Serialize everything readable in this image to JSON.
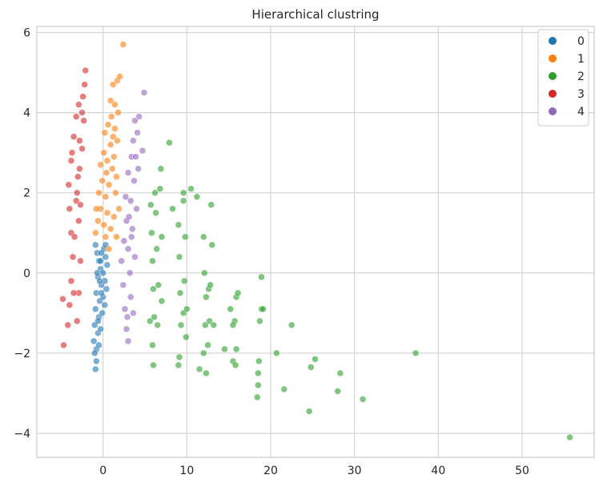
{
  "chart_data": {
    "type": "scatter",
    "title": "Hierarchical clustring",
    "xlabel": "",
    "ylabel": "",
    "xlim": [
      -7.9,
      58.6
    ],
    "ylim": [
      -4.6,
      6.15
    ],
    "x_ticks": [
      0,
      10,
      20,
      30,
      40,
      50
    ],
    "y_ticks": [
      -4,
      -2,
      0,
      2,
      4,
      6
    ],
    "x_tick_labels": [
      "0",
      "10",
      "20",
      "30",
      "40",
      "50"
    ],
    "y_tick_labels": [
      "−4",
      "−2",
      "0",
      "2",
      "4",
      "6"
    ],
    "grid": true,
    "legend_position": "top-right",
    "series": [
      {
        "name": "0",
        "color": "#1f77b4",
        "points": [
          [
            -0.9,
            0.7
          ],
          [
            -0.7,
            0.5
          ],
          [
            -0.5,
            0.3
          ],
          [
            -0.3,
            0.1
          ],
          [
            0.1,
            0.6
          ],
          [
            0.3,
            0.4
          ],
          [
            0.5,
            0.2
          ],
          [
            -0.6,
            -0.1
          ],
          [
            -0.2,
            -0.3
          ],
          [
            0.2,
            -0.2
          ],
          [
            -0.8,
            -0.5
          ],
          [
            -0.4,
            -0.7
          ],
          [
            0.0,
            -0.6
          ],
          [
            0.4,
            -0.4
          ],
          [
            -0.9,
            -0.9
          ],
          [
            -0.5,
            -1.1
          ],
          [
            -0.1,
            -1.0
          ],
          [
            0.2,
            -0.8
          ],
          [
            -1.0,
            -1.3
          ],
          [
            -0.6,
            -1.5
          ],
          [
            -0.3,
            -1.4
          ],
          [
            -1.1,
            -1.7
          ],
          [
            -0.8,
            -1.9
          ],
          [
            -0.5,
            -1.8
          ],
          [
            -1.0,
            -2.0
          ],
          [
            -0.8,
            -2.2
          ],
          [
            -0.9,
            -2.4
          ],
          [
            -0.7,
            0.0
          ],
          [
            -0.3,
            0.3
          ],
          [
            0.0,
            0.0
          ],
          [
            -0.4,
            -0.2
          ],
          [
            0.3,
            0.7
          ],
          [
            -0.2,
            0.5
          ],
          [
            -0.6,
            -1.2
          ],
          [
            -0.2,
            -0.5
          ]
        ]
      },
      {
        "name": "1",
        "color": "#ff7f0e",
        "points": [
          [
            -0.9,
            1.0
          ],
          [
            -0.6,
            1.3
          ],
          [
            -0.3,
            1.6
          ],
          [
            0.1,
            1.2
          ],
          [
            0.5,
            1.5
          ],
          [
            0.9,
            1.1
          ],
          [
            1.3,
            1.4
          ],
          [
            1.6,
            0.9
          ],
          [
            0.7,
            0.6
          ],
          [
            -0.5,
            2.0
          ],
          [
            -0.1,
            2.3
          ],
          [
            0.3,
            1.9
          ],
          [
            0.7,
            2.2
          ],
          [
            1.1,
            2.6
          ],
          [
            1.5,
            2.0
          ],
          [
            -0.3,
            2.7
          ],
          [
            0.1,
            3.0
          ],
          [
            0.5,
            2.8
          ],
          [
            0.9,
            3.2
          ],
          [
            1.3,
            2.9
          ],
          [
            1.7,
            3.3
          ],
          [
            0.2,
            3.5
          ],
          [
            0.6,
            3.7
          ],
          [
            1.0,
            3.9
          ],
          [
            1.4,
            3.6
          ],
          [
            1.8,
            4.0
          ],
          [
            0.9,
            4.3
          ],
          [
            1.4,
            4.2
          ],
          [
            1.7,
            4.8
          ],
          [
            1.2,
            4.7
          ],
          [
            2.0,
            4.9
          ],
          [
            2.4,
            5.7
          ],
          [
            0.3,
            0.9
          ],
          [
            1.9,
            1.6
          ],
          [
            -0.8,
            1.6
          ],
          [
            1.6,
            2.4
          ],
          [
            0.4,
            2.5
          ],
          [
            1.2,
            3.4
          ]
        ]
      },
      {
        "name": "2",
        "color": "#2ca02c",
        "points": [
          [
            5.7,
            1.7
          ],
          [
            5.8,
            1.0
          ],
          [
            5.9,
            0.3
          ],
          [
            6.0,
            -0.4
          ],
          [
            6.1,
            -1.1
          ],
          [
            5.9,
            -1.8
          ],
          [
            6.0,
            -2.3
          ],
          [
            6.3,
            1.5
          ],
          [
            6.4,
            0.6
          ],
          [
            6.6,
            -0.3
          ],
          [
            6.5,
            -1.3
          ],
          [
            6.8,
            2.1
          ],
          [
            6.9,
            2.6
          ],
          [
            7.0,
            0.9
          ],
          [
            7.0,
            -0.7
          ],
          [
            5.6,
            -1.2
          ],
          [
            6.2,
            2.0
          ],
          [
            7.9,
            3.25
          ],
          [
            8.3,
            1.6
          ],
          [
            9.0,
            1.2
          ],
          [
            9.1,
            0.4
          ],
          [
            9.2,
            -0.5
          ],
          [
            9.3,
            -1.3
          ],
          [
            9.1,
            -2.1
          ],
          [
            9.0,
            -2.3
          ],
          [
            9.6,
            1.8
          ],
          [
            9.8,
            0.9
          ],
          [
            9.7,
            -0.2
          ],
          [
            9.6,
            -1.0
          ],
          [
            9.9,
            -1.6
          ],
          [
            9.6,
            2.0
          ],
          [
            10.5,
            2.1
          ],
          [
            11.2,
            1.9
          ],
          [
            10.0,
            -0.9
          ],
          [
            12.0,
            0.9
          ],
          [
            12.1,
            0.0
          ],
          [
            12.3,
            -0.6
          ],
          [
            12.2,
            -1.3
          ],
          [
            12.0,
            -2.0
          ],
          [
            12.3,
            -2.5
          ],
          [
            12.6,
            -0.4
          ],
          [
            12.7,
            -1.2
          ],
          [
            12.5,
            -1.8
          ],
          [
            12.9,
            1.7
          ],
          [
            13.0,
            0.7
          ],
          [
            12.8,
            -0.3
          ],
          [
            11.5,
            -2.4
          ],
          [
            13.2,
            -1.3
          ],
          [
            14.5,
            -1.9
          ],
          [
            15.2,
            -0.9
          ],
          [
            15.7,
            -1.2
          ],
          [
            15.9,
            -0.6
          ],
          [
            16.1,
            -0.5
          ],
          [
            15.5,
            -1.3
          ],
          [
            15.5,
            -2.2
          ],
          [
            15.8,
            -2.3
          ],
          [
            15.9,
            -1.9
          ],
          [
            18.4,
            -3.1
          ],
          [
            18.5,
            -2.8
          ],
          [
            18.5,
            -2.5
          ],
          [
            18.6,
            -2.2
          ],
          [
            18.7,
            -1.2
          ],
          [
            18.9,
            -0.9
          ],
          [
            19.1,
            -0.9
          ],
          [
            18.9,
            -0.1
          ],
          [
            20.7,
            -2.0
          ],
          [
            21.6,
            -2.9
          ],
          [
            22.5,
            -1.3
          ],
          [
            24.6,
            -3.45
          ],
          [
            24.8,
            -2.35
          ],
          [
            25.3,
            -2.15
          ],
          [
            28.0,
            -2.95
          ],
          [
            28.3,
            -2.5
          ],
          [
            31.0,
            -3.15
          ],
          [
            37.3,
            -2.0
          ],
          [
            55.7,
            -4.1
          ]
        ]
      },
      {
        "name": "3",
        "color": "#d62728",
        "points": [
          [
            -4.8,
            -0.65
          ],
          [
            -4.7,
            -1.8
          ],
          [
            -4.2,
            -1.3
          ],
          [
            -4.0,
            -0.8
          ],
          [
            -3.8,
            -0.2
          ],
          [
            -3.6,
            0.4
          ],
          [
            -3.8,
            1.0
          ],
          [
            -4.0,
            1.6
          ],
          [
            -4.1,
            2.2
          ],
          [
            -3.8,
            2.8
          ],
          [
            -3.5,
            3.4
          ],
          [
            -3.2,
            3.9
          ],
          [
            -2.9,
            4.2
          ],
          [
            -3.1,
            -1.2
          ],
          [
            -2.9,
            -0.5
          ],
          [
            -2.7,
            0.3
          ],
          [
            -2.9,
            1.3
          ],
          [
            -3.1,
            2.0
          ],
          [
            -2.8,
            2.6
          ],
          [
            -2.5,
            3.1
          ],
          [
            -2.3,
            3.8
          ],
          [
            -2.4,
            4.4
          ],
          [
            -2.2,
            4.7
          ],
          [
            -2.1,
            5.05
          ],
          [
            -2.5,
            4.0
          ],
          [
            -2.8,
            3.3
          ],
          [
            -3.4,
            0.9
          ],
          [
            -3.2,
            1.8
          ],
          [
            -3.5,
            -0.5
          ],
          [
            -3.0,
            2.4
          ],
          [
            -2.7,
            1.7
          ],
          [
            -3.7,
            3.0
          ]
        ]
      },
      {
        "name": "4",
        "color": "#9467bd",
        "points": [
          [
            2.2,
            0.3
          ],
          [
            2.4,
            -0.3
          ],
          [
            2.6,
            -0.9
          ],
          [
            2.8,
            -1.4
          ],
          [
            3.0,
            -1.7
          ],
          [
            2.5,
            0.8
          ],
          [
            2.8,
            1.3
          ],
          [
            3.0,
            0.6
          ],
          [
            3.2,
            0.0
          ],
          [
            3.3,
            -0.6
          ],
          [
            3.6,
            -1.0
          ],
          [
            2.7,
            1.9
          ],
          [
            3.0,
            2.5
          ],
          [
            3.3,
            1.8
          ],
          [
            3.5,
            1.1
          ],
          [
            3.8,
            0.4
          ],
          [
            3.4,
            2.9
          ],
          [
            3.7,
            2.3
          ],
          [
            4.0,
            1.6
          ],
          [
            3.6,
            3.3
          ],
          [
            3.9,
            2.9
          ],
          [
            4.1,
            3.5
          ],
          [
            4.3,
            3.9
          ],
          [
            3.8,
            3.8
          ],
          [
            4.7,
            3.05
          ],
          [
            4.9,
            4.5
          ],
          [
            2.9,
            -1.1
          ],
          [
            3.4,
            0.9
          ],
          [
            4.2,
            2.6
          ],
          [
            3.1,
            1.4
          ]
        ]
      }
    ]
  }
}
